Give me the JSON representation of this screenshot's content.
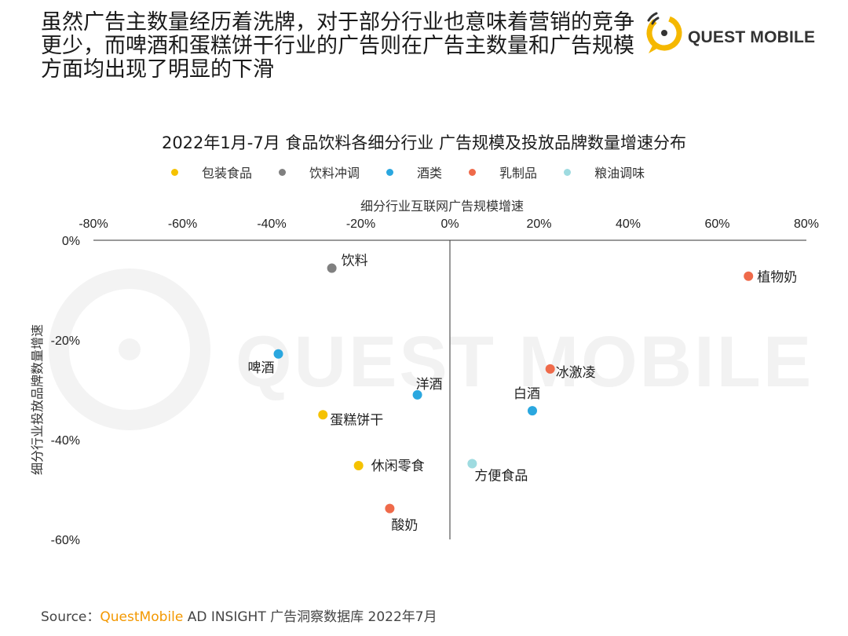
{
  "headline": {
    "lines": [
      "虽然广告主数量经历着洗牌，对于部分行业也意味着营销的竞争",
      "更少，而啤酒和蛋糕饼干行业的广告则在广告主数量和广告规模",
      "方面均出现了明显的下滑"
    ]
  },
  "brand": {
    "name": "QUEST MOBILE",
    "accent_color": "#f5b800",
    "watermark": "QUEST MOBILE"
  },
  "colors": {
    "包装食品": "#f5c200",
    "饮料冲调": "#808080",
    "酒类": "#2aa7df",
    "乳制品": "#ef6a4a",
    "粮油调味": "#9edbe0"
  },
  "chart_data": {
    "type": "scatter",
    "title": "2022年1月-7月 食品饮料各细分行业 广告规模及投放品牌数量增速分布",
    "xlabel": "细分行业互联网广告规模增速",
    "ylabel": "细分行业投放品牌数量增速",
    "xlim": [
      -80,
      80
    ],
    "ylim": [
      -60,
      0
    ],
    "x_ticks": [
      "-80%",
      "-60%",
      "-40%",
      "-20%",
      "0%",
      "20%",
      "40%",
      "60%",
      "80%"
    ],
    "y_ticks": [
      "0%",
      "-20%",
      "-40%",
      "-60%"
    ],
    "legend": [
      "包装食品",
      "饮料冲调",
      "酒类",
      "乳制品",
      "粮油调味"
    ],
    "legend_position": "top",
    "grid": false,
    "points": [
      {
        "label": "饮料",
        "category": "饮料冲调",
        "x": -26.5,
        "y": -5.6
      },
      {
        "label": "植物奶",
        "category": "乳制品",
        "x": 67.0,
        "y": -7.2
      },
      {
        "label": "啤酒",
        "category": "酒类",
        "x": -38.5,
        "y": -22.8
      },
      {
        "label": "冰激凌",
        "category": "乳制品",
        "x": 22.5,
        "y": -25.8
      },
      {
        "label": "洋酒",
        "category": "酒类",
        "x": -7.3,
        "y": -31.0
      },
      {
        "label": "白酒",
        "category": "酒类",
        "x": 18.5,
        "y": -34.2
      },
      {
        "label": "蛋糕饼干",
        "category": "包装食品",
        "x": -28.5,
        "y": -35.0
      },
      {
        "label": "休闲零食",
        "category": "包装食品",
        "x": -20.5,
        "y": -45.2
      },
      {
        "label": "方便食品",
        "category": "粮油调味",
        "x": 5.0,
        "y": -44.8
      },
      {
        "label": "酸奶",
        "category": "乳制品",
        "x": -13.5,
        "y": -53.8
      }
    ]
  },
  "source": {
    "prefix": "Source：",
    "brand": "QuestMobile",
    "rest": " AD INSIGHT 广告洞察数据库 2022年7月"
  }
}
